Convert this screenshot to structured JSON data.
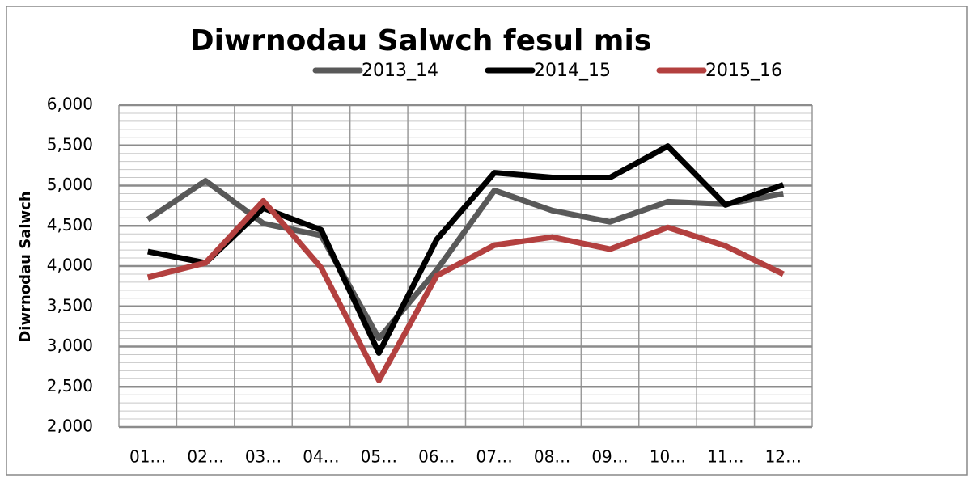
{
  "chart_data": {
    "type": "line",
    "title": "Diwrnodau Salwch fesul mis",
    "y_label": "Diwrnodau Salwch",
    "categories": [
      "01…",
      "02…",
      "03…",
      "04…",
      "05…",
      "06…",
      "07…",
      "08…",
      "09…",
      "10…",
      "11…",
      "12…"
    ],
    "series": [
      {
        "name": "2013_14",
        "color": "#595959",
        "values": [
          4580,
          5060,
          4530,
          4380,
          3100,
          3950,
          4940,
          4690,
          4550,
          4800,
          4770,
          4900
        ]
      },
      {
        "name": "2014_15",
        "color": "#000000",
        "values": [
          4180,
          4040,
          4720,
          4450,
          2920,
          4330,
          5160,
          5100,
          5100,
          5490,
          4760,
          5010
        ]
      },
      {
        "name": "2015_16",
        "color": "#b3403f",
        "values": [
          3860,
          4040,
          4810,
          3980,
          2580,
          3880,
          4260,
          4360,
          4210,
          4480,
          4250,
          3900
        ]
      }
    ],
    "ylim": [
      2000,
      6000
    ],
    "yticks": [
      {
        "value": 2000,
        "label": "2,000"
      },
      {
        "value": 2500,
        "label": "2,500"
      },
      {
        "value": 3000,
        "label": "3,000"
      },
      {
        "value": 3500,
        "label": "3,500"
      },
      {
        "value": 4000,
        "label": "4,000"
      },
      {
        "value": 4500,
        "label": "4,500"
      },
      {
        "value": 5000,
        "label": "5,000"
      },
      {
        "value": 5500,
        "label": "5,500"
      },
      {
        "value": 6000,
        "label": "6,000"
      }
    ],
    "grid": true,
    "minor_grid": true,
    "legend": "top"
  }
}
